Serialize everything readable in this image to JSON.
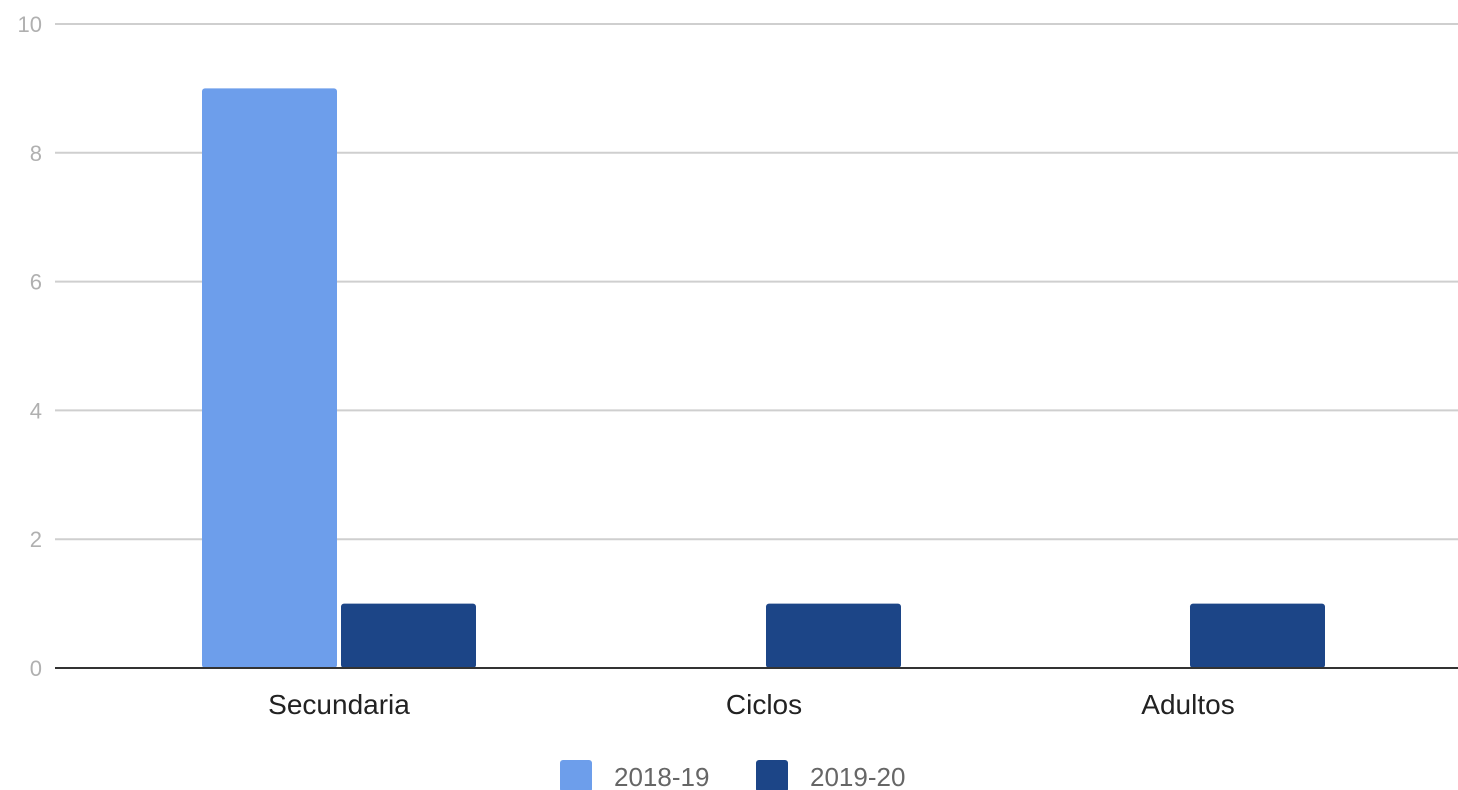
{
  "chart_data": {
    "type": "bar",
    "categories": [
      "Secundaria",
      "Ciclos",
      "Adultos"
    ],
    "series": [
      {
        "name": "2018-19",
        "values": [
          9,
          0,
          0
        ],
        "color": "#6d9eeb"
      },
      {
        "name": "2019-20",
        "values": [
          1,
          1,
          1
        ],
        "color": "#1c4587"
      }
    ],
    "ylim": [
      0,
      10
    ],
    "yticks": [
      0,
      2,
      4,
      6,
      8,
      10
    ],
    "grid": true,
    "legend_position": "bottom"
  }
}
